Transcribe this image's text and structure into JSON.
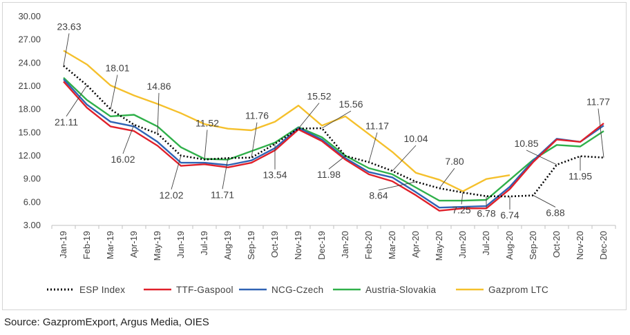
{
  "chart_data": {
    "type": "line",
    "title": "",
    "xlabel": "",
    "ylabel": "",
    "ylim": [
      3,
      30
    ],
    "yticks": [
      "30.00",
      "27.00",
      "24.00",
      "21.00",
      "18.00",
      "15.00",
      "12.00",
      "9.00",
      "6.00",
      "3.00"
    ],
    "ytick_values": [
      30,
      27,
      24,
      21,
      18,
      15,
      12,
      9,
      6,
      3
    ],
    "grid": false,
    "legend_position": "bottom",
    "categories": [
      "Jan-19",
      "Feb-19",
      "Mar-19",
      "Apr-19",
      "May-19",
      "Jun-19",
      "Jul-19",
      "Aug-19",
      "Sep-19",
      "Oct-19",
      "Nov-19",
      "Dec-19",
      "Jan-20",
      "Feb-20",
      "Mar-20",
      "Apr-20",
      "May-20",
      "Jun-20",
      "Jul-20",
      "Aug-20",
      "Sep-20",
      "Oct-20",
      "Nov-20",
      "Dec-20"
    ],
    "series": [
      {
        "name": "ESP Index",
        "color": "#000000",
        "style": "dotted",
        "values": [
          23.63,
          21.11,
          18.01,
          16.02,
          14.86,
          12.02,
          11.52,
          11.71,
          11.76,
          13.54,
          15.52,
          15.56,
          11.98,
          11.17,
          10.04,
          8.64,
          7.8,
          7.25,
          6.78,
          6.74,
          6.88,
          10.85,
          11.95,
          11.77
        ]
      },
      {
        "name": "TTF-Gaspool",
        "color": "#e0202a",
        "style": "solid",
        "values": [
          21.6,
          18.2,
          15.8,
          15.2,
          13.3,
          10.7,
          10.9,
          10.5,
          11.1,
          12.7,
          15.4,
          13.9,
          11.5,
          9.6,
          8.7,
          6.9,
          4.9,
          5.2,
          5.2,
          7.7,
          11.2,
          14.1,
          13.8,
          16.2
        ]
      },
      {
        "name": "NCG-Czech",
        "color": "#2f63b4",
        "style": "solid",
        "values": [
          21.9,
          18.6,
          16.4,
          15.8,
          13.8,
          11.1,
          11.1,
          10.8,
          11.4,
          13.0,
          15.6,
          14.1,
          11.7,
          9.9,
          9.2,
          7.3,
          5.3,
          5.4,
          5.5,
          8.0,
          11.4,
          14.2,
          13.8,
          15.9
        ]
      },
      {
        "name": "Austria-Slovakia",
        "color": "#2fb04a",
        "style": "solid",
        "values": [
          22.1,
          19.2,
          17.1,
          17.3,
          15.8,
          13.1,
          11.6,
          11.5,
          12.6,
          13.7,
          15.7,
          14.4,
          12.0,
          10.4,
          9.6,
          7.9,
          6.2,
          6.2,
          6.3,
          8.9,
          11.5,
          13.4,
          13.2,
          15.2
        ]
      },
      {
        "name": "Gazprom LTC",
        "color": "#f5c02c",
        "style": "solid",
        "values": [
          25.6,
          23.8,
          21.1,
          19.8,
          18.7,
          17.5,
          16.1,
          15.5,
          15.3,
          16.4,
          18.5,
          15.9,
          17.1,
          14.8,
          12.5,
          9.8,
          8.9,
          7.4,
          9.0,
          9.5,
          null,
          null,
          null,
          null
        ]
      }
    ],
    "annotations": [
      {
        "text": "23.63",
        "category": "Jan-19"
      },
      {
        "text": "21.11",
        "category": "Feb-19"
      },
      {
        "text": "18.01",
        "category": "Mar-19"
      },
      {
        "text": "16.02",
        "category": "Apr-19"
      },
      {
        "text": "14.86",
        "category": "May-19"
      },
      {
        "text": "12.02",
        "category": "Jun-19"
      },
      {
        "text": "11.52",
        "category": "Jul-19"
      },
      {
        "text": "11.71",
        "category": "Aug-19"
      },
      {
        "text": "11.76",
        "category": "Sep-19"
      },
      {
        "text": "13.54",
        "category": "Oct-19"
      },
      {
        "text": "15.52",
        "category": "Nov-19"
      },
      {
        "text": "15.56",
        "category": "Dec-19"
      },
      {
        "text": "11.98",
        "category": "Jan-20"
      },
      {
        "text": "11.17",
        "category": "Feb-20"
      },
      {
        "text": "10.04",
        "category": "Mar-20"
      },
      {
        "text": "8.64",
        "category": "Apr-20"
      },
      {
        "text": "7.80",
        "category": "May-20"
      },
      {
        "text": "7.25",
        "category": "Jun-20"
      },
      {
        "text": "6.78",
        "category": "Jul-20"
      },
      {
        "text": "6.74",
        "category": "Aug-20"
      },
      {
        "text": "6.88",
        "category": "Sep-20"
      },
      {
        "text": "10.85",
        "category": "Oct-20"
      },
      {
        "text": "11.95",
        "category": "Nov-20"
      },
      {
        "text": "11.77",
        "category": "Dec-20"
      }
    ]
  },
  "source": "Source: GazpromExport, Argus Media, OIES"
}
